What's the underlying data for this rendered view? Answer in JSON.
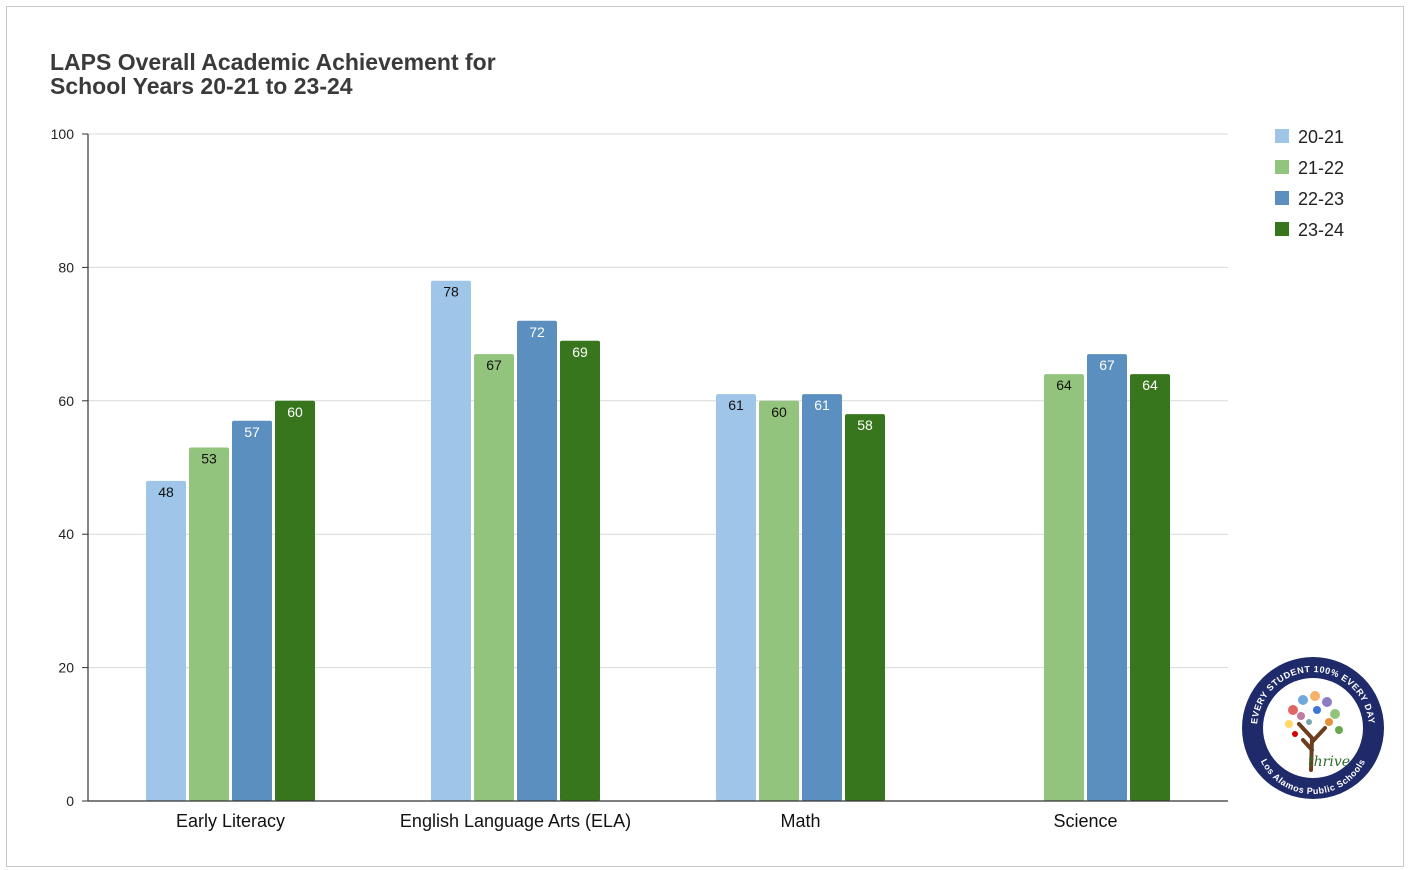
{
  "chart_data": {
    "type": "bar",
    "title_lines": [
      "LAPS Overall Academic Achievement for",
      "School Years 20-21 to 23-24"
    ],
    "xlabel": "",
    "ylabel": "",
    "ylim": [
      0,
      100
    ],
    "yticks": [
      0,
      20,
      40,
      60,
      80,
      100
    ],
    "grid": true,
    "legend_position": "top-right",
    "categories": [
      "Early Literacy",
      "English Language Arts (ELA)",
      "Math",
      "Science"
    ],
    "series": [
      {
        "name": "20-21",
        "color": "#9fc5e8",
        "label_color": "#111111",
        "values": [
          48,
          78,
          61,
          null
        ]
      },
      {
        "name": "21-22",
        "color": "#93c47d",
        "label_color": "#111111",
        "values": [
          53,
          67,
          60,
          64
        ]
      },
      {
        "name": "22-23",
        "color": "#5b8fbf",
        "label_color": "#ffffff",
        "values": [
          57,
          72,
          61,
          67
        ]
      },
      {
        "name": "23-24",
        "color": "#38761d",
        "label_color": "#ffffff",
        "values": [
          60,
          69,
          58,
          64
        ]
      }
    ]
  },
  "logo": {
    "top_text": "EVERY STUDENT 100% EVERY DAY",
    "bottom_text": "Los Alamos Public Schools",
    "script_text": "thrive"
  }
}
